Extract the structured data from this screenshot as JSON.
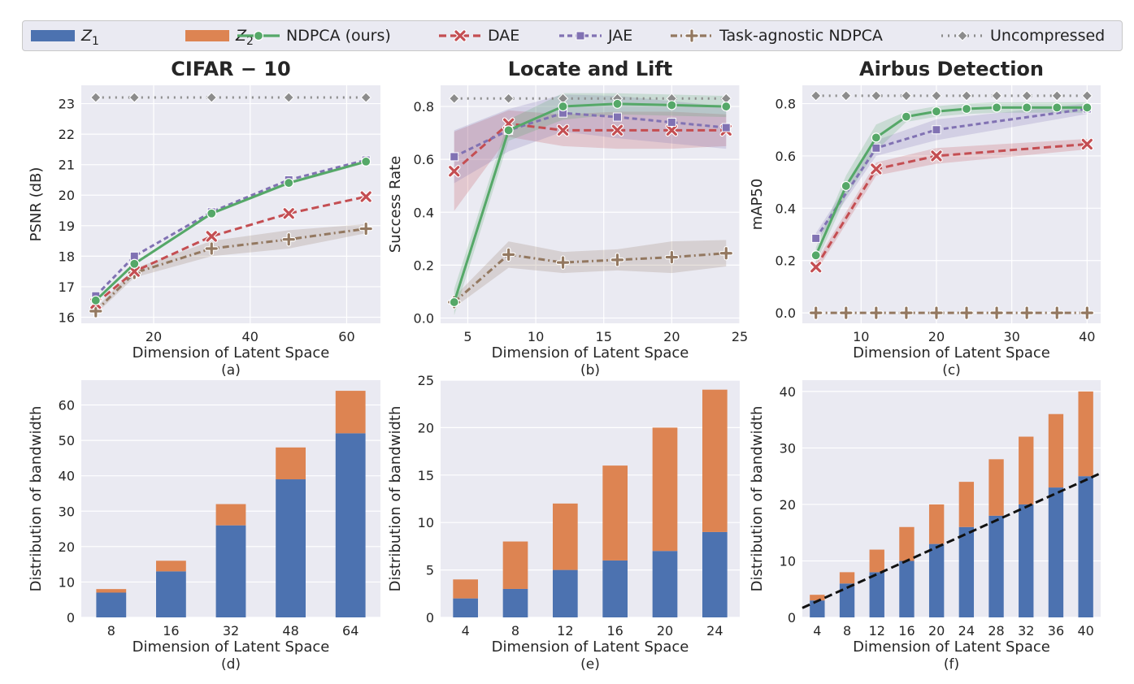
{
  "legend": {
    "items": [
      {
        "label": "Z",
        "sub": "1",
        "kind": "patch",
        "color": "#4c72b0"
      },
      {
        "label": "Z",
        "sub": "2",
        "kind": "patch",
        "color": "#dd8452"
      },
      {
        "label": "NDPCA (ours)",
        "kind": "line",
        "color": "#55a868",
        "dash": "",
        "marker": "circle"
      },
      {
        "label": "DAE",
        "kind": "line",
        "color": "#c44e52",
        "dash": "9,5",
        "marker": "x"
      },
      {
        "label": "JAE",
        "kind": "line",
        "color": "#8172b3",
        "dash": "6,4",
        "marker": "square"
      },
      {
        "label": "Task-agnostic NDPCA",
        "kind": "line",
        "color": "#937860",
        "dash": "8,4,2,4",
        "marker": "plus"
      },
      {
        "label": "Uncompressed",
        "kind": "line",
        "color": "#8c8c8c",
        "dash": "2,6",
        "marker": "diamond"
      }
    ]
  },
  "colors": {
    "panel_bg": "#eaeaf2",
    "grid": "#ffffff",
    "z1": "#4c72b0",
    "z2": "#dd8452",
    "ndpca": "#55a868",
    "dae": "#c44e52",
    "jae": "#8172b3",
    "task_agnostic": "#937860",
    "uncompressed": "#8c8c8c"
  },
  "chart_data": [
    {
      "id": "a",
      "type": "line",
      "title": "CIFAR − 10",
      "caption": "(a)",
      "xlabel": "Dimension of Latent Space",
      "ylabel": "PSNR (dB)",
      "xlim": [
        5,
        67
      ],
      "ylim": [
        15.8,
        23.6
      ],
      "xticks": [
        20,
        40,
        60
      ],
      "yticks": [
        16,
        17,
        18,
        19,
        20,
        21,
        22,
        23
      ],
      "series": [
        {
          "name": "NDPCA (ours)",
          "key": "ndpca",
          "x": [
            8,
            16,
            32,
            48,
            64
          ],
          "y": [
            16.55,
            17.75,
            19.4,
            20.4,
            21.1
          ],
          "band": [
            0.05,
            0.05,
            0.05,
            0.05,
            0.05
          ]
        },
        {
          "name": "DAE",
          "key": "dae",
          "x": [
            8,
            16,
            32,
            48,
            64
          ],
          "y": [
            16.45,
            17.5,
            18.65,
            19.4,
            19.95
          ]
        },
        {
          "name": "JAE",
          "key": "jae",
          "x": [
            8,
            16,
            32,
            48,
            64
          ],
          "y": [
            16.7,
            18.0,
            19.45,
            20.5,
            21.15
          ]
        },
        {
          "name": "Task-agnostic NDPCA",
          "key": "task_agnostic",
          "x": [
            8,
            16,
            32,
            48,
            64
          ],
          "y": [
            16.2,
            17.45,
            18.25,
            18.55,
            18.9
          ],
          "band": [
            0.1,
            0.15,
            0.25,
            0.3,
            0.15
          ]
        },
        {
          "name": "Uncompressed",
          "key": "uncompressed",
          "x": [
            8,
            16,
            32,
            48,
            64
          ],
          "y": [
            23.2,
            23.2,
            23.2,
            23.2,
            23.2
          ]
        }
      ]
    },
    {
      "id": "b",
      "type": "line",
      "title": "Locate and Lift",
      "caption": "(b)",
      "xlabel": "Dimension of Latent Space",
      "ylabel": "Success Rate",
      "xlim": [
        3,
        25
      ],
      "ylim": [
        -0.02,
        0.88
      ],
      "xticks": [
        5,
        10,
        15,
        20,
        25
      ],
      "yticks": [
        0.0,
        0.2,
        0.4,
        0.6,
        0.8
      ],
      "series": [
        {
          "name": "NDPCA (ours)",
          "key": "ndpca",
          "x": [
            4,
            8,
            12,
            16,
            20,
            24
          ],
          "y": [
            0.06,
            0.71,
            0.8,
            0.81,
            0.805,
            0.8
          ],
          "band": [
            0.05,
            0.04,
            0.05,
            0.04,
            0.04,
            0.04
          ]
        },
        {
          "name": "DAE",
          "key": "dae",
          "x": [
            4,
            8,
            12,
            16,
            20,
            24
          ],
          "y": [
            0.555,
            0.735,
            0.71,
            0.71,
            0.71,
            0.71
          ],
          "band": [
            0.15,
            0.05,
            0.06,
            0.07,
            0.07,
            0.06
          ]
        },
        {
          "name": "JAE",
          "key": "jae",
          "x": [
            4,
            8,
            12,
            16,
            20,
            24
          ],
          "y": [
            0.61,
            0.71,
            0.775,
            0.76,
            0.74,
            0.72
          ],
          "band": [
            0.1,
            0.08,
            0.07,
            0.08,
            0.08,
            0.08
          ]
        },
        {
          "name": "Task-agnostic NDPCA",
          "key": "task_agnostic",
          "x": [
            4,
            8,
            12,
            16,
            20,
            24
          ],
          "y": [
            0.06,
            0.24,
            0.21,
            0.22,
            0.23,
            0.245
          ],
          "band": [
            0.02,
            0.05,
            0.04,
            0.04,
            0.06,
            0.05
          ]
        },
        {
          "name": "Uncompressed",
          "key": "uncompressed",
          "x": [
            4,
            8,
            12,
            16,
            20,
            24
          ],
          "y": [
            0.83,
            0.83,
            0.83,
            0.83,
            0.83,
            0.83
          ]
        }
      ]
    },
    {
      "id": "c",
      "type": "line",
      "title": "Airbus Detection",
      "caption": "(c)",
      "xlabel": "Dimension of Latent Space",
      "ylabel": "mAP50",
      "xlim": [
        2.2,
        41.8
      ],
      "ylim": [
        -0.04,
        0.87
      ],
      "xticks": [
        10,
        20,
        30,
        40
      ],
      "yticks": [
        0.0,
        0.2,
        0.4,
        0.6,
        0.8
      ],
      "series": [
        {
          "name": "NDPCA (ours)",
          "key": "ndpca",
          "x": [
            4,
            8,
            12,
            16,
            20,
            24,
            28,
            32,
            36,
            40
          ],
          "y": [
            0.22,
            0.485,
            0.67,
            0.75,
            0.77,
            0.78,
            0.785,
            0.785,
            0.785,
            0.785
          ],
          "band": [
            0.03,
            0.04,
            0.05,
            0.02,
            0.02,
            0.02,
            0.02,
            0.02,
            0.02,
            0.02
          ]
        },
        {
          "name": "DAE",
          "key": "dae",
          "x": [
            4,
            12,
            20,
            40
          ],
          "y": [
            0.175,
            0.55,
            0.6,
            0.645
          ],
          "band": [
            0.02,
            0.025,
            0.03,
            0.02
          ]
        },
        {
          "name": "JAE",
          "key": "jae",
          "x": [
            4,
            12,
            20,
            40
          ],
          "y": [
            0.285,
            0.63,
            0.7,
            0.78
          ],
          "band": [
            0.02,
            0.03,
            0.04,
            0.02
          ]
        },
        {
          "name": "Task-agnostic NDPCA",
          "key": "task_agnostic",
          "x": [
            4,
            8,
            12,
            16,
            20,
            24,
            28,
            32,
            36,
            40
          ],
          "y": [
            0,
            0,
            0,
            0,
            0,
            0,
            0,
            0,
            0,
            0
          ]
        },
        {
          "name": "Uncompressed",
          "key": "uncompressed",
          "x": [
            4,
            8,
            12,
            16,
            20,
            24,
            28,
            32,
            36,
            40
          ],
          "y": [
            0.83,
            0.83,
            0.83,
            0.83,
            0.83,
            0.83,
            0.83,
            0.83,
            0.83,
            0.83
          ]
        }
      ]
    },
    {
      "id": "d",
      "type": "bar",
      "caption": "(d)",
      "xlabel": "Dimension of Latent Space",
      "ylabel": "Distribution of bandwidth",
      "ylim": [
        0,
        67
      ],
      "yticks": [
        0,
        10,
        20,
        30,
        40,
        50,
        60
      ],
      "categories": [
        "8",
        "16",
        "32",
        "48",
        "64"
      ],
      "series": [
        {
          "name": "Z1",
          "key": "z1",
          "values": [
            7,
            13,
            26,
            39,
            52
          ]
        },
        {
          "name": "Z2",
          "key": "z2",
          "values": [
            1,
            3,
            6,
            9,
            12
          ]
        }
      ]
    },
    {
      "id": "e",
      "type": "bar",
      "caption": "(e)",
      "xlabel": "Dimension of Latent Space",
      "ylabel": "Distribution of bandwidth",
      "ylim": [
        0,
        25
      ],
      "yticks": [
        0,
        5,
        10,
        15,
        20,
        25
      ],
      "categories": [
        "4",
        "8",
        "12",
        "16",
        "20",
        "24"
      ],
      "series": [
        {
          "name": "Z1",
          "key": "z1",
          "values": [
            2,
            3,
            5,
            6,
            7,
            9
          ]
        },
        {
          "name": "Z2",
          "key": "z2",
          "values": [
            2,
            5,
            7,
            10,
            13,
            15
          ]
        }
      ]
    },
    {
      "id": "f",
      "type": "bar",
      "caption": "(f)",
      "xlabel": "Dimension of Latent Space",
      "ylabel": "Distribution of bandwidth",
      "ylim": [
        0,
        42
      ],
      "yticks": [
        0,
        10,
        20,
        30,
        40
      ],
      "categories": [
        "4",
        "8",
        "12",
        "16",
        "20",
        "24",
        "28",
        "32",
        "36",
        "40"
      ],
      "series": [
        {
          "name": "Z1",
          "key": "z1",
          "values": [
            3,
            6,
            8,
            10,
            13,
            16,
            18,
            20,
            23,
            25
          ]
        },
        {
          "name": "Z2",
          "key": "z2",
          "values": [
            1,
            2,
            4,
            6,
            7,
            8,
            10,
            12,
            13,
            15
          ]
        }
      ],
      "trendline": {
        "from": [
          -0.7,
          1.2
        ],
        "to": [
          9.7,
          26
        ]
      }
    }
  ]
}
